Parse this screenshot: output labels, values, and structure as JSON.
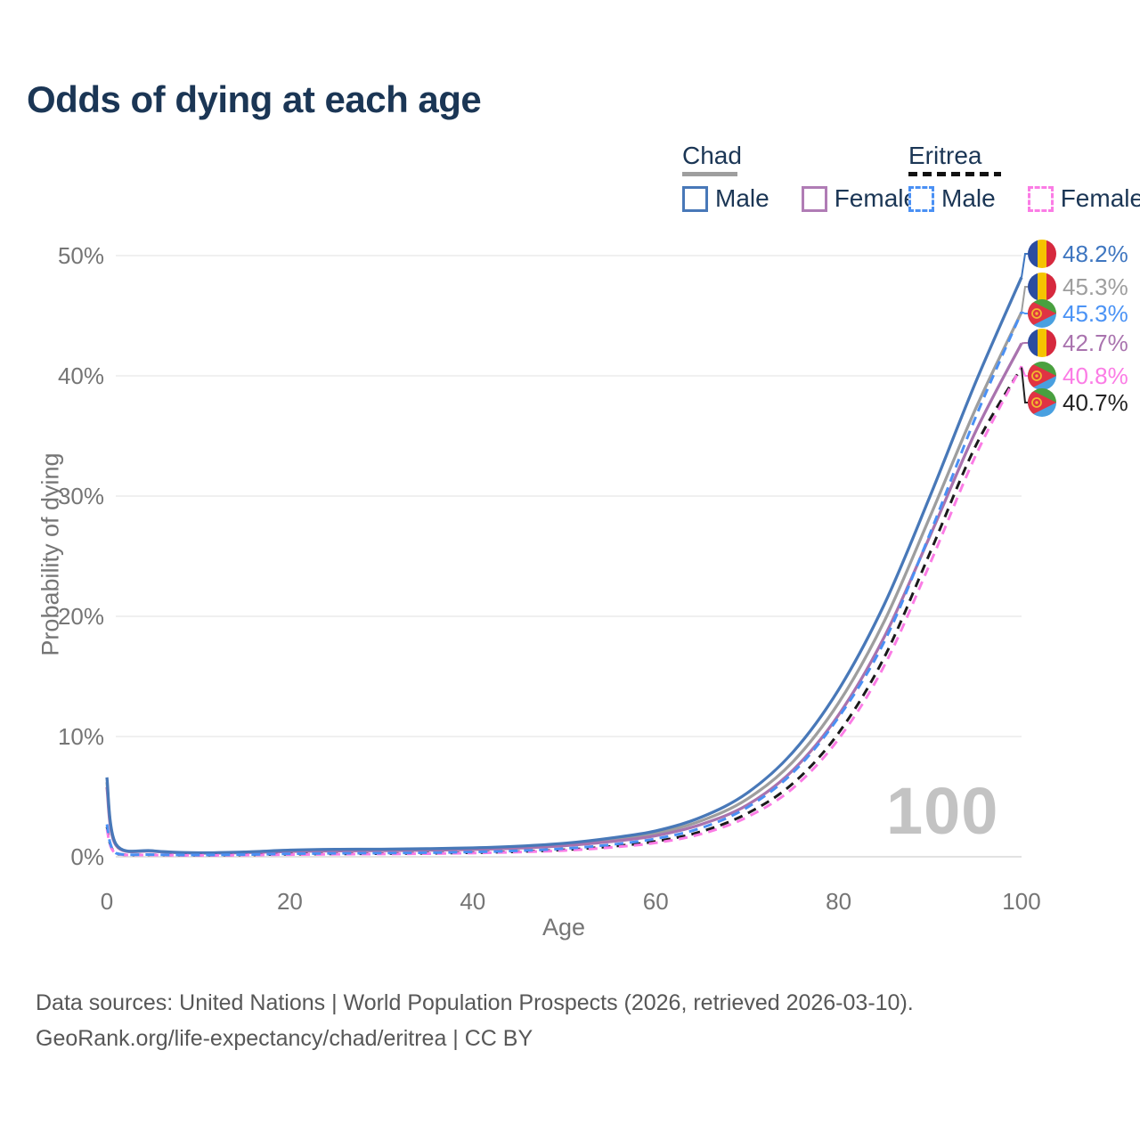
{
  "title": "Odds of dying at each age",
  "legend": {
    "groups": [
      {
        "name": "Chad",
        "underline_style": "solid",
        "underline_color": "#9e9e9e",
        "items": [
          {
            "label": "Male",
            "box_color": "#4878b8",
            "box_style": "solid"
          },
          {
            "label": "Female",
            "box_color": "#b07cb5",
            "box_style": "solid"
          }
        ]
      },
      {
        "name": "Eritrea",
        "underline_style": "dashed",
        "underline_color": "#111111",
        "items": [
          {
            "label": "Male",
            "box_color": "#4a90f4",
            "box_style": "dashed"
          },
          {
            "label": "Female",
            "box_color": "#fb7ce5",
            "box_style": "dashed"
          }
        ]
      }
    ]
  },
  "chart_data": {
    "type": "line",
    "title": "Odds of dying at each age",
    "xlabel": "Age",
    "ylabel": "Probability of dying",
    "watermark": "100",
    "xlim": [
      0,
      100
    ],
    "ylim_pct": [
      0,
      50
    ],
    "grid": "horizontal",
    "legend_position": "top-right",
    "x_ticks": [
      0,
      20,
      40,
      60,
      80,
      100
    ],
    "x_tick_labels": [
      "0",
      "20",
      "40",
      "60",
      "80",
      "100"
    ],
    "y_ticks": [
      0,
      10,
      20,
      30,
      40,
      50
    ],
    "y_tick_labels": [
      "0%",
      "10%",
      "20%",
      "30%",
      "40%",
      "50%"
    ],
    "ages": [
      0,
      1,
      5,
      10,
      15,
      20,
      25,
      30,
      35,
      40,
      45,
      50,
      55,
      60,
      65,
      70,
      75,
      80,
      85,
      90,
      95,
      100
    ],
    "series": [
      {
        "id": "chad-both",
        "country": "Chad",
        "sex": "Both",
        "style": "solid",
        "color": "#9e9e9e",
        "values": [
          6.2,
          1.0,
          0.48,
          0.31,
          0.37,
          0.5,
          0.56,
          0.57,
          0.6,
          0.67,
          0.8,
          1.02,
          1.4,
          1.95,
          3.0,
          4.8,
          7.9,
          12.8,
          19.6,
          28.3,
          37.3,
          45.3
        ]
      },
      {
        "id": "chad-female",
        "country": "Chad",
        "sex": "Female",
        "style": "solid",
        "color": "#a973ae",
        "values": [
          5.8,
          0.95,
          0.46,
          0.3,
          0.34,
          0.44,
          0.49,
          0.51,
          0.54,
          0.6,
          0.72,
          0.92,
          1.26,
          1.75,
          2.7,
          4.3,
          7.2,
          11.8,
          18.3,
          26.7,
          35.4,
          42.7
        ]
      },
      {
        "id": "chad-male",
        "country": "Chad",
        "sex": "Male",
        "style": "solid",
        "color": "#4878b8",
        "values": [
          6.6,
          1.05,
          0.5,
          0.33,
          0.4,
          0.55,
          0.62,
          0.63,
          0.67,
          0.74,
          0.88,
          1.12,
          1.55,
          2.15,
          3.3,
          5.3,
          8.7,
          13.9,
          21.0,
          30.0,
          39.5,
          48.2
        ]
      },
      {
        "id": "eritrea-both",
        "country": "Eritrea",
        "sex": "Both",
        "style": "dashed",
        "color": "#1a1a1a",
        "values": [
          2.5,
          0.28,
          0.16,
          0.13,
          0.15,
          0.21,
          0.24,
          0.26,
          0.29,
          0.34,
          0.43,
          0.58,
          0.85,
          1.28,
          2.1,
          3.6,
          6.1,
          10.3,
          16.6,
          25.3,
          34.2,
          40.7
        ]
      },
      {
        "id": "eritrea-female",
        "country": "Eritrea",
        "sex": "Female",
        "style": "dashed",
        "color": "#fb7ce5",
        "values": [
          2.3,
          0.26,
          0.15,
          0.12,
          0.14,
          0.18,
          0.21,
          0.23,
          0.26,
          0.31,
          0.39,
          0.52,
          0.77,
          1.16,
          1.9,
          3.3,
          5.7,
          9.8,
          15.9,
          24.4,
          33.4,
          40.8
        ]
      },
      {
        "id": "eritrea-male",
        "country": "Eritrea",
        "sex": "Male",
        "style": "dashed",
        "color": "#4a90f4",
        "values": [
          2.7,
          0.3,
          0.18,
          0.15,
          0.18,
          0.25,
          0.29,
          0.31,
          0.34,
          0.4,
          0.5,
          0.68,
          1.0,
          1.5,
          2.4,
          4.1,
          7.0,
          11.6,
          17.9,
          26.9,
          36.6,
          45.3
        ]
      }
    ],
    "end_labels": [
      {
        "flag": "chad",
        "value": "48.2%",
        "pct": 48.2,
        "color": "#3e76c0"
      },
      {
        "flag": "chad",
        "value": "45.3%",
        "pct": 45.3,
        "color": "#9e9e9e"
      },
      {
        "flag": "eritrea",
        "value": "45.3%",
        "pct": 45.3,
        "color": "#4b93f5"
      },
      {
        "flag": "chad",
        "value": "42.7%",
        "pct": 42.7,
        "color": "#a973ae"
      },
      {
        "flag": "eritrea",
        "value": "40.8%",
        "pct": 40.8,
        "color": "#fb7ce5"
      },
      {
        "flag": "eritrea",
        "value": "40.7%",
        "pct": 40.7,
        "color": "#222222"
      }
    ]
  },
  "footer": {
    "line1": "Data sources: United Nations | World Population Prospects (2026, retrieved 2026-03-10).",
    "line2": "GeoRank.org/life-expectancy/chad/eritrea | CC BY"
  }
}
